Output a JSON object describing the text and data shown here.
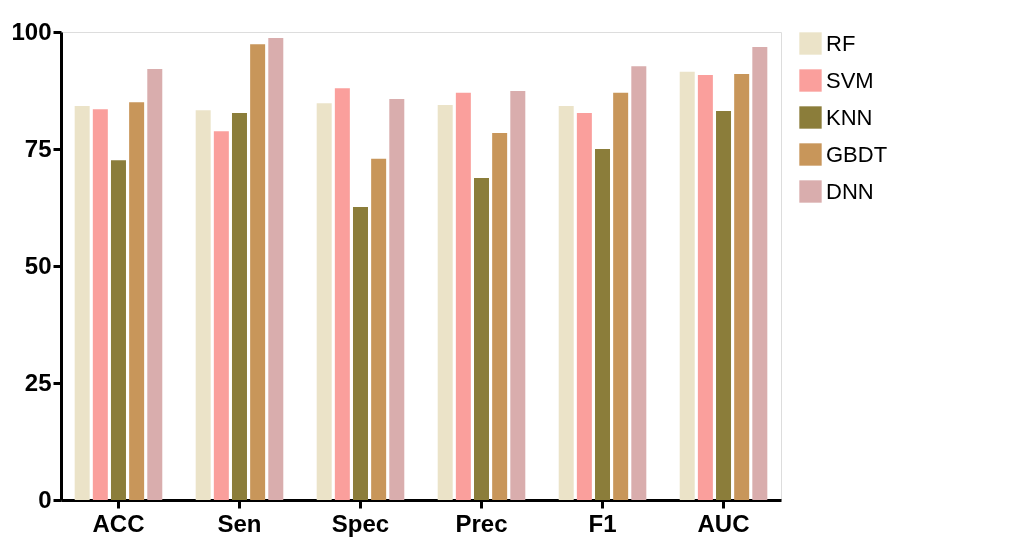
{
  "chart_data": {
    "type": "bar",
    "categories": [
      "ACC",
      "Sen",
      "Spec",
      "Prec",
      "F1",
      "AUC"
    ],
    "series": [
      {
        "name": "RF",
        "color": "#ebe3c8",
        "values": [
          84.2,
          83.3,
          84.8,
          84.4,
          84.2,
          91.5
        ]
      },
      {
        "name": "SVM",
        "color": "#fa9f9c",
        "values": [
          83.5,
          78.8,
          88,
          87,
          82.7,
          90.8
        ]
      },
      {
        "name": "KNN",
        "color": "#8b7d3a",
        "values": [
          72.6,
          82.7,
          62.6,
          68.8,
          75,
          83.1
        ]
      },
      {
        "name": "GBDT",
        "color": "#c8965a",
        "values": [
          85,
          97.4,
          72.9,
          78.4,
          87,
          91
        ]
      },
      {
        "name": "DNN",
        "color": "#d9adad",
        "values": [
          92.1,
          98.7,
          85.7,
          87.4,
          92.7,
          96.8
        ]
      }
    ],
    "ylim": [
      0,
      100
    ],
    "yticks": [
      0,
      25,
      50,
      75,
      100
    ],
    "grid": false,
    "legend": "right"
  }
}
